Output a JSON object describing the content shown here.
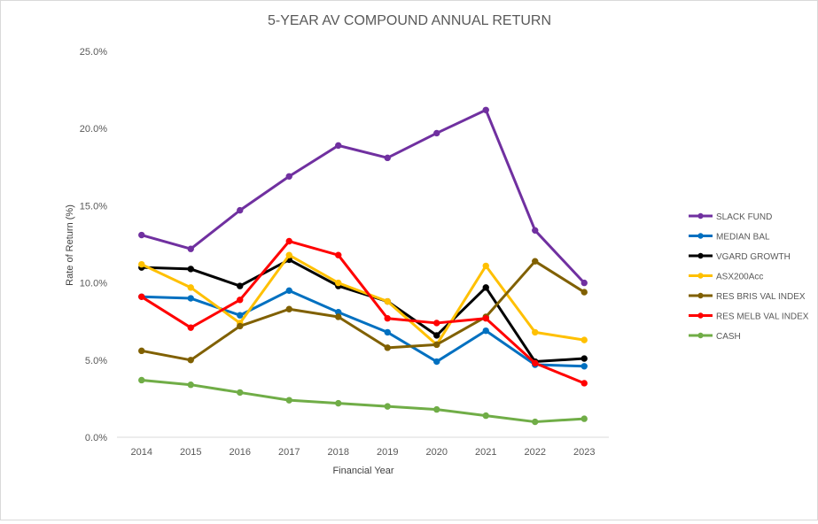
{
  "chart_data": {
    "type": "line",
    "title": "5-YEAR AV COMPOUND ANNUAL RETURN",
    "xlabel": "Financial Year",
    "ylabel": "Rate of Return (%)",
    "ylim": [
      0,
      25
    ],
    "y_ticks": [
      "0.0%",
      "5.0%",
      "10.0%",
      "15.0%",
      "20.0%",
      "25.0%"
    ],
    "grid": false,
    "legend_position": "right",
    "categories": [
      "2014",
      "2015",
      "2016",
      "2017",
      "2018",
      "2019",
      "2020",
      "2021",
      "2022",
      "2023"
    ],
    "series": [
      {
        "name": "SLACK FUND",
        "color": "#7030a0",
        "values": [
          13.1,
          12.2,
          14.7,
          16.9,
          18.9,
          18.1,
          19.7,
          21.2,
          13.4,
          10.0
        ]
      },
      {
        "name": "MEDIAN BAL",
        "color": "#0070c0",
        "values": [
          9.1,
          9.0,
          7.9,
          9.5,
          8.1,
          6.8,
          4.9,
          6.9,
          4.7,
          4.6
        ]
      },
      {
        "name": "VGARD GROWTH",
        "color": "#000000",
        "values": [
          11.0,
          10.9,
          9.8,
          11.5,
          9.8,
          8.8,
          6.6,
          9.7,
          4.9,
          5.1
        ]
      },
      {
        "name": "ASX200Acc",
        "color": "#ffc000",
        "values": [
          11.2,
          9.7,
          7.4,
          11.8,
          10.0,
          8.8,
          6.0,
          11.1,
          6.8,
          6.3
        ]
      },
      {
        "name": "RES BRIS VAL INDEX",
        "color": "#806000",
        "values": [
          5.6,
          5.0,
          7.2,
          8.3,
          7.8,
          5.8,
          6.0,
          7.8,
          11.4,
          9.4
        ]
      },
      {
        "name": "RES MELB VAL INDEX",
        "color": "#ff0000",
        "values": [
          9.1,
          7.1,
          8.9,
          12.7,
          11.8,
          7.7,
          7.4,
          7.7,
          4.8,
          3.5
        ]
      },
      {
        "name": "CASH",
        "color": "#70ad47",
        "values": [
          3.7,
          3.4,
          2.9,
          2.4,
          2.2,
          2.0,
          1.8,
          1.4,
          1.0,
          1.2
        ]
      }
    ]
  }
}
